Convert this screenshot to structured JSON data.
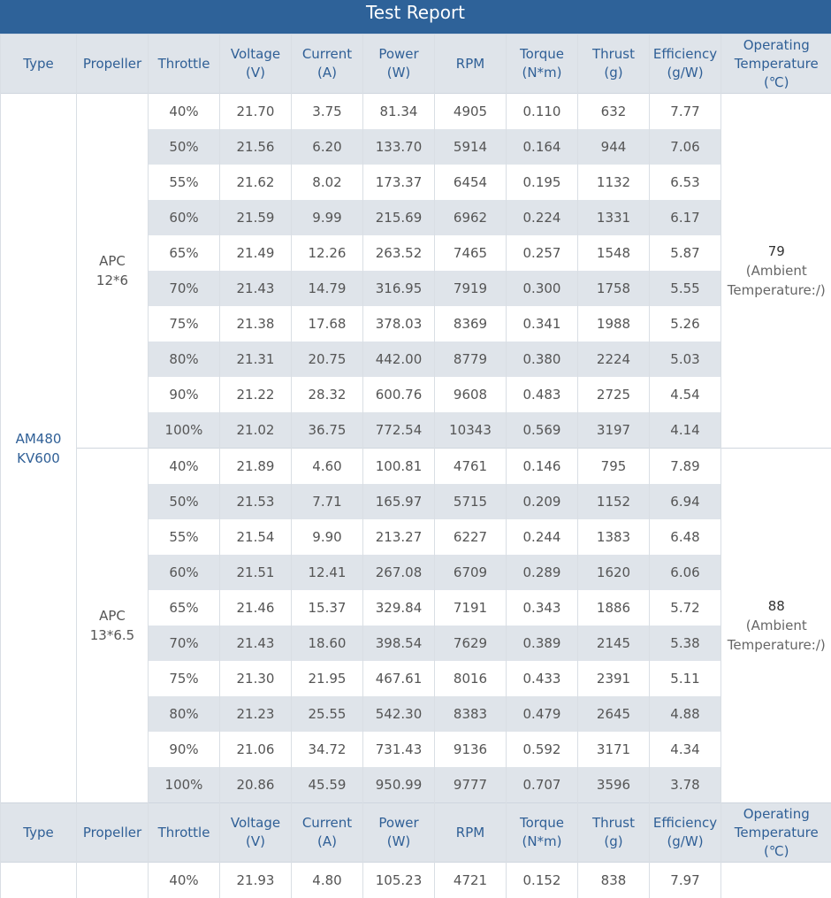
{
  "title": "Test Report",
  "headers": {
    "type": "Type",
    "propeller": "Propeller",
    "throttle": "Throttle",
    "voltage": [
      "Voltage",
      "(V)"
    ],
    "current": [
      "Current",
      "(A)"
    ],
    "power": [
      "Power",
      "(W)"
    ],
    "rpm": "RPM",
    "torque": [
      "Torque",
      "(N*m)"
    ],
    "thrust": [
      "Thrust",
      "(g)"
    ],
    "efficiency": [
      "Efficiency",
      "(g/W)"
    ],
    "temperature": [
      "Operating",
      "Temperature",
      "(℃)"
    ]
  },
  "motor": [
    "AM480",
    "KV600"
  ],
  "groups": [
    {
      "propeller": [
        "APC",
        "12*6"
      ],
      "temperature": "79",
      "temperature_note": [
        "(Ambient",
        "Temperature:/)"
      ],
      "rows": [
        [
          "40%",
          "21.70",
          "3.75",
          "81.34",
          "4905",
          "0.110",
          "632",
          "7.77"
        ],
        [
          "50%",
          "21.56",
          "6.20",
          "133.70",
          "5914",
          "0.164",
          "944",
          "7.06"
        ],
        [
          "55%",
          "21.62",
          "8.02",
          "173.37",
          "6454",
          "0.195",
          "1132",
          "6.53"
        ],
        [
          "60%",
          "21.59",
          "9.99",
          "215.69",
          "6962",
          "0.224",
          "1331",
          "6.17"
        ],
        [
          "65%",
          "21.49",
          "12.26",
          "263.52",
          "7465",
          "0.257",
          "1548",
          "5.87"
        ],
        [
          "70%",
          "21.43",
          "14.79",
          "316.95",
          "7919",
          "0.300",
          "1758",
          "5.55"
        ],
        [
          "75%",
          "21.38",
          "17.68",
          "378.03",
          "8369",
          "0.341",
          "1988",
          "5.26"
        ],
        [
          "80%",
          "21.31",
          "20.75",
          "442.00",
          "8779",
          "0.380",
          "2224",
          "5.03"
        ],
        [
          "90%",
          "21.22",
          "28.32",
          "600.76",
          "9608",
          "0.483",
          "2725",
          "4.54"
        ],
        [
          "100%",
          "21.02",
          "36.75",
          "772.54",
          "10343",
          "0.569",
          "3197",
          "4.14"
        ]
      ]
    },
    {
      "propeller": [
        "APC",
        "13*6.5"
      ],
      "temperature": "88",
      "temperature_note": [
        "(Ambient",
        "Temperature:/)"
      ],
      "rows": [
        [
          "40%",
          "21.89",
          "4.60",
          "100.81",
          "4761",
          "0.146",
          "795",
          "7.89"
        ],
        [
          "50%",
          "21.53",
          "7.71",
          "165.97",
          "5715",
          "0.209",
          "1152",
          "6.94"
        ],
        [
          "55%",
          "21.54",
          "9.90",
          "213.27",
          "6227",
          "0.244",
          "1383",
          "6.48"
        ],
        [
          "60%",
          "21.51",
          "12.41",
          "267.08",
          "6709",
          "0.289",
          "1620",
          "6.06"
        ],
        [
          "65%",
          "21.46",
          "15.37",
          "329.84",
          "7191",
          "0.343",
          "1886",
          "5.72"
        ],
        [
          "70%",
          "21.43",
          "18.60",
          "398.54",
          "7629",
          "0.389",
          "2145",
          "5.38"
        ],
        [
          "75%",
          "21.30",
          "21.95",
          "467.61",
          "8016",
          "0.433",
          "2391",
          "5.11"
        ],
        [
          "80%",
          "21.23",
          "25.55",
          "542.30",
          "8383",
          "0.479",
          "2645",
          "4.88"
        ],
        [
          "90%",
          "21.06",
          "34.72",
          "731.43",
          "9136",
          "0.592",
          "3171",
          "4.34"
        ],
        [
          "100%",
          "20.86",
          "45.59",
          "950.99",
          "9777",
          "0.707",
          "3596",
          "3.78"
        ]
      ]
    }
  ],
  "next_group_partial_row": [
    "40%",
    "21.93",
    "4.80",
    "105.23",
    "4721",
    "0.152",
    "838",
    "7.97"
  ]
}
